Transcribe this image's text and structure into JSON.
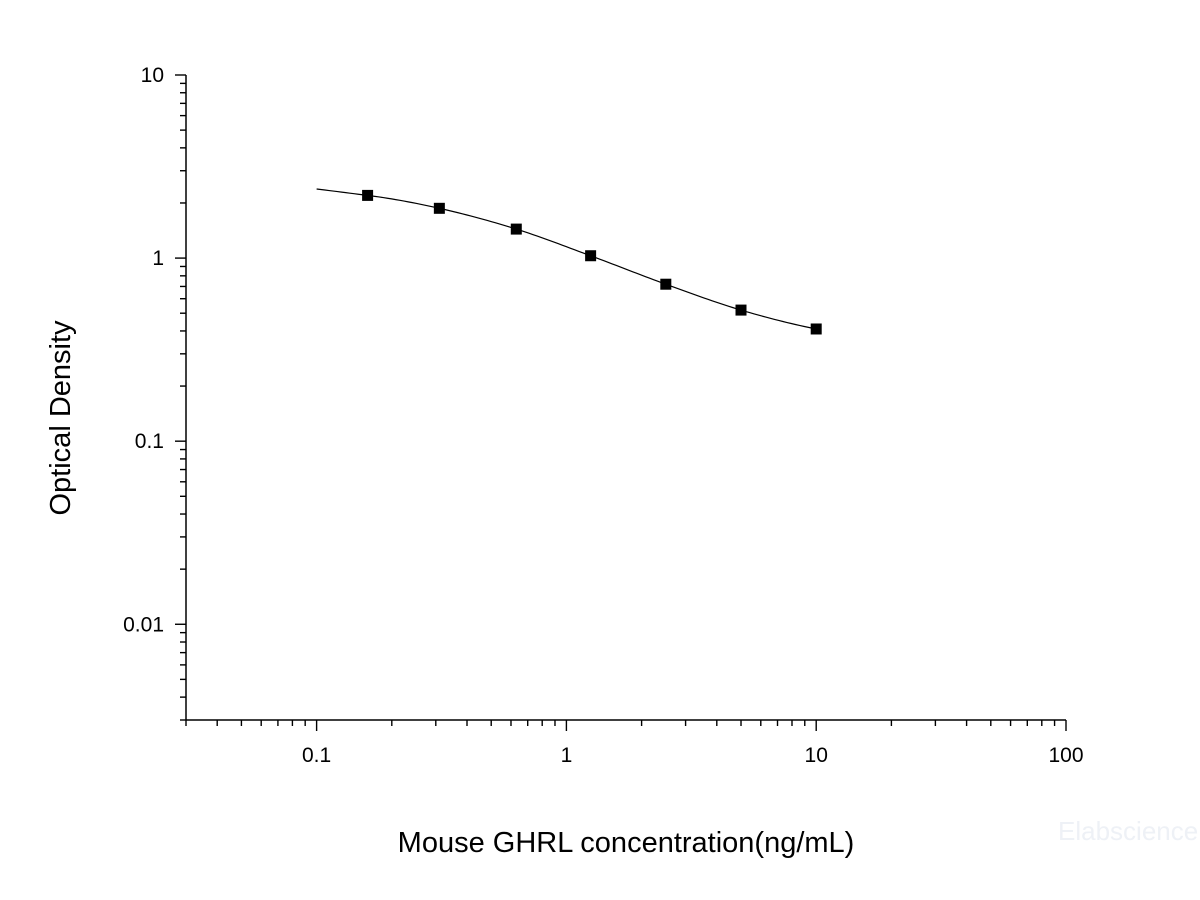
{
  "chart_data": {
    "type": "scatter",
    "x_scale": "log",
    "y_scale": "log",
    "xlim": [
      0.03,
      100
    ],
    "ylim": [
      0.003,
      10
    ],
    "x_ticks": [
      "0.1",
      "1",
      "10",
      "100"
    ],
    "y_ticks": [
      "10",
      "1",
      "0.1",
      "0.01"
    ],
    "xlabel": "Mouse GHRL concentration(ng/mL)",
    "ylabel": "Optical Density",
    "grid": false,
    "series": [
      {
        "marker": "square",
        "color": "#000000",
        "x": [
          0.16,
          0.31,
          0.63,
          1.25,
          2.5,
          5,
          10
        ],
        "y": [
          2.2,
          1.87,
          1.44,
          1.03,
          0.72,
          0.52,
          0.41
        ]
      }
    ],
    "fit_curve": {
      "type": "four-parameter logistic",
      "color": "#000000",
      "x_range": [
        0.1,
        10
      ]
    },
    "watermark": "Elabscience"
  }
}
